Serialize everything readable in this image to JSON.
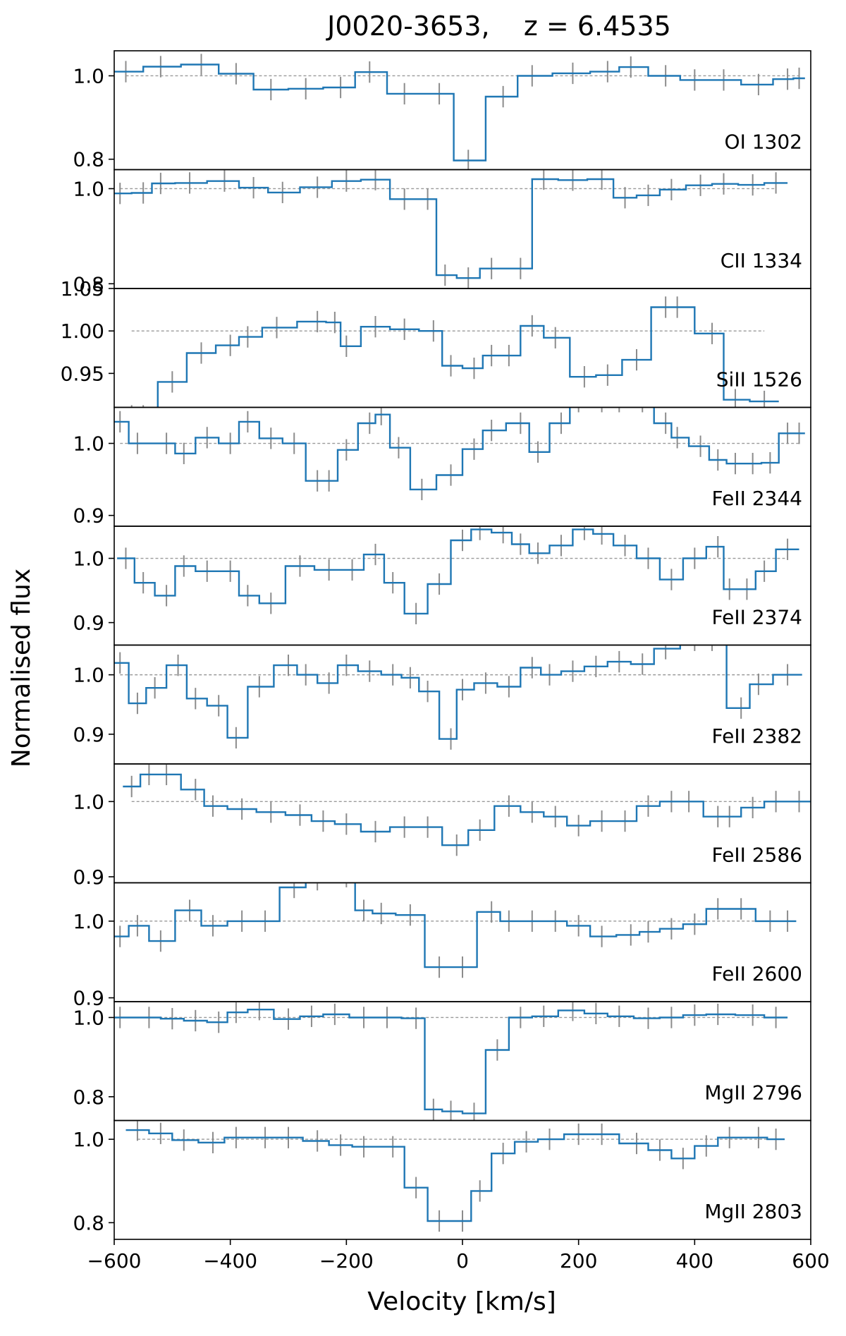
{
  "figure": {
    "title": "J0020-3653,    z = 6.4535",
    "xlabel": "Velocity [km/s]",
    "ylabel": "Normalised flux",
    "xlim": [
      -600,
      600
    ],
    "xticks": [
      -600,
      -400,
      -200,
      0,
      200,
      400,
      600
    ],
    "xtick_labels": [
      "−600",
      "−400",
      "−200",
      "0",
      "200",
      "400",
      "600"
    ]
  },
  "colors": {
    "flux": "#1f77b4",
    "error": "#8c8c8c",
    "continuum": "#9a9a9a"
  },
  "chart_data": [
    {
      "type": "line",
      "label": "OI 1302",
      "ylim": [
        0.775,
        1.06
      ],
      "yticks": [
        0.8,
        1.0
      ],
      "ytick_labels": [
        "0.8",
        "1.0"
      ],
      "x": [
        -580,
        -520,
        -450,
        -390,
        -330,
        -270,
        -210,
        -160,
        -100,
        -40,
        10,
        70,
        120,
        190,
        250,
        290,
        350,
        400,
        450,
        510,
        560,
        580
      ],
      "y": [
        1.01,
        1.022,
        1.027,
        1.005,
        0.967,
        0.969,
        0.972,
        1.009,
        0.957,
        0.957,
        0.797,
        0.95,
        1.0,
        1.006,
        1.01,
        1.021,
        1.0,
        0.99,
        0.99,
        0.979,
        0.992,
        0.994
      ]
    },
    {
      "type": "line",
      "label": "CII 1334",
      "ylim": [
        0.79,
        1.04
      ],
      "yticks": [
        0.8,
        1.0
      ],
      "ytick_labels": [
        "0.8",
        "1.0"
      ],
      "x": [
        -590,
        -550,
        -520,
        -470,
        -410,
        -360,
        -310,
        -250,
        -200,
        -150,
        -100,
        -60,
        -30,
        10,
        50,
        100,
        140,
        190,
        240,
        280,
        320,
        360,
        410,
        450,
        500,
        540
      ],
      "y": [
        0.99,
        0.991,
        1.011,
        1.012,
        1.016,
        1.002,
        0.992,
        1.003,
        1.016,
        1.019,
        0.978,
        0.978,
        0.818,
        0.812,
        0.832,
        0.832,
        1.02,
        1.018,
        1.02,
        0.981,
        0.986,
        0.998,
        1.007,
        1.01,
        1.008,
        1.012
      ]
    },
    {
      "type": "line",
      "label": "SiII 1526",
      "ylim": [
        0.91,
        1.05
      ],
      "yticks": [
        0.95,
        1.0,
        1.05
      ],
      "ytick_labels": [
        "0.95",
        "1.00",
        "1.05"
      ],
      "x": [
        -570,
        -550,
        -500,
        -450,
        -400,
        -370,
        -320,
        -250,
        -220,
        -200,
        -150,
        -100,
        -50,
        -20,
        20,
        50,
        80,
        120,
        160,
        210,
        250,
        300,
        350,
        370,
        430,
        470,
        520
      ],
      "y": [
        0.9,
        0.9,
        0.94,
        0.974,
        0.983,
        0.993,
        1.004,
        1.011,
        1.01,
        0.982,
        1.005,
        1.002,
        1.0,
        0.959,
        0.956,
        0.971,
        0.971,
        1.006,
        0.992,
        0.946,
        0.948,
        0.966,
        1.028,
        1.028,
        0.997,
        0.919,
        0.917
      ]
    },
    {
      "type": "line",
      "label": "FeII 2344",
      "ylim": [
        0.885,
        1.05
      ],
      "yticks": [
        0.9,
        1.0
      ],
      "ytick_labels": [
        "0.9",
        "1.0"
      ],
      "x": [
        -590,
        -560,
        -510,
        -480,
        -440,
        -400,
        -370,
        -330,
        -290,
        -250,
        -230,
        -200,
        -160,
        -140,
        -110,
        -70,
        -20,
        20,
        50,
        100,
        130,
        170,
        200,
        240,
        270,
        310,
        350,
        370,
        410,
        440,
        470,
        500,
        530,
        560,
        580
      ],
      "y": [
        1.03,
        1.0,
        1.0,
        0.986,
        1.008,
        1.0,
        1.03,
        1.007,
        1.0,
        0.948,
        0.948,
        0.991,
        1.028,
        1.04,
        0.994,
        0.936,
        0.956,
        0.992,
        1.018,
        1.028,
        0.988,
        1.028,
        1.058,
        1.058,
        1.058,
        1.058,
        1.028,
        1.008,
        0.996,
        0.977,
        0.972,
        0.972,
        0.973,
        1.014,
        1.014
      ]
    },
    {
      "type": "line",
      "label": "FeII 2374",
      "ylim": [
        0.865,
        1.05
      ],
      "yticks": [
        0.9,
        1.0
      ],
      "ytick_labels": [
        "0.9",
        "1.0"
      ],
      "x": [
        -580,
        -550,
        -510,
        -480,
        -440,
        -400,
        -370,
        -330,
        -280,
        -230,
        -190,
        -150,
        -120,
        -80,
        -40,
        0,
        30,
        70,
        100,
        130,
        170,
        210,
        240,
        280,
        320,
        360,
        400,
        440,
        460,
        490,
        520,
        560
      ],
      "y": [
        1.0,
        0.962,
        0.942,
        0.988,
        0.98,
        0.98,
        0.942,
        0.93,
        0.988,
        0.982,
        0.982,
        1.006,
        0.962,
        0.914,
        0.96,
        1.028,
        1.045,
        1.04,
        1.022,
        1.008,
        1.02,
        1.045,
        1.038,
        1.02,
        1.0,
        0.967,
        1.0,
        1.018,
        0.952,
        0.952,
        0.98,
        1.014
      ]
    },
    {
      "type": "line",
      "label": "FeII 2382",
      "ylim": [
        0.85,
        1.05
      ],
      "yticks": [
        0.9,
        1.0
      ],
      "ytick_labels": [
        "0.9",
        "1.0"
      ],
      "x": [
        -590,
        -560,
        -530,
        -490,
        -460,
        -420,
        -390,
        -350,
        -300,
        -270,
        -230,
        -200,
        -160,
        -120,
        -90,
        -60,
        -20,
        0,
        40,
        80,
        120,
        150,
        190,
        230,
        270,
        310,
        350,
        400,
        430,
        480,
        510,
        560
      ],
      "y": [
        1.02,
        0.952,
        0.978,
        1.016,
        0.96,
        0.948,
        0.894,
        0.98,
        1.016,
        1.0,
        0.986,
        1.016,
        1.006,
        1.0,
        0.995,
        0.972,
        0.892,
        0.975,
        0.986,
        0.98,
        1.012,
        1.0,
        1.006,
        1.014,
        1.022,
        1.018,
        1.044,
        1.058,
        1.058,
        0.944,
        0.984,
        1.0
      ]
    },
    {
      "type": "line",
      "label": "FeII 2586",
      "ylim": [
        0.892,
        1.05
      ],
      "yticks": [
        0.9,
        1.0
      ],
      "ytick_labels": [
        "0.9",
        "1.0"
      ],
      "x": [
        -570,
        -540,
        -510,
        -460,
        -430,
        -380,
        -330,
        -280,
        -240,
        -200,
        -150,
        -100,
        -60,
        -10,
        30,
        80,
        120,
        160,
        200,
        240,
        280,
        320,
        360,
        390,
        440,
        460,
        500,
        540,
        580
      ],
      "y": [
        1.02,
        1.036,
        1.036,
        1.016,
        0.994,
        0.99,
        0.986,
        0.982,
        0.974,
        0.97,
        0.96,
        0.966,
        0.966,
        0.942,
        0.962,
        0.994,
        0.986,
        0.98,
        0.968,
        0.974,
        0.974,
        0.994,
        1.0,
        1.0,
        0.98,
        0.98,
        0.992,
        1.0,
        1.0
      ]
    },
    {
      "type": "line",
      "label": "FeII 2600",
      "ylim": [
        0.895,
        1.05
      ],
      "yticks": [
        0.9,
        1.0
      ],
      "ytick_labels": [
        "0.9",
        "1.0"
      ],
      "x": [
        -590,
        -560,
        -520,
        -470,
        -430,
        -380,
        -340,
        -290,
        -250,
        -200,
        -170,
        -140,
        -90,
        -40,
        0,
        50,
        80,
        120,
        160,
        200,
        240,
        290,
        320,
        360,
        400,
        440,
        480,
        530,
        560
      ],
      "y": [
        0.98,
        0.994,
        0.974,
        1.014,
        0.994,
        1.0,
        1.0,
        1.044,
        1.054,
        1.058,
        1.014,
        1.01,
        1.008,
        0.94,
        0.94,
        1.012,
        1.0,
        1.0,
        1.0,
        0.994,
        0.98,
        0.982,
        0.986,
        0.99,
        0.996,
        1.016,
        1.016,
        1.0,
        1.0
      ]
    },
    {
      "type": "line",
      "label": "MgII 2796",
      "ylim": [
        0.74,
        1.04
      ],
      "yticks": [
        0.8,
        1.0
      ],
      "ytick_labels": [
        "0.8",
        "1.0"
      ],
      "x": [
        -590,
        -540,
        -500,
        -460,
        -420,
        -390,
        -350,
        -300,
        -260,
        -220,
        -170,
        -130,
        -80,
        -50,
        -20,
        20,
        60,
        100,
        140,
        190,
        230,
        270,
        320,
        360,
        400,
        440,
        500,
        540
      ],
      "y": [
        1.0,
        1.0,
        0.997,
        0.992,
        0.988,
        1.013,
        1.02,
        0.996,
        1.003,
        1.008,
        1.0,
        1.0,
        0.998,
        0.768,
        0.763,
        0.758,
        0.918,
        1.0,
        1.003,
        1.018,
        1.01,
        1.003,
        0.998,
        1.0,
        1.006,
        1.008,
        1.006,
        1.0
      ]
    },
    {
      "type": "line",
      "label": "MgII 2803",
      "ylim": [
        0.76,
        1.045
      ],
      "yticks": [
        0.8,
        1.0
      ],
      "ytick_labels": [
        "0.8",
        "1.0"
      ],
      "x": [
        -560,
        -520,
        -480,
        -430,
        -390,
        -340,
        -300,
        -250,
        -210,
        -170,
        -120,
        -80,
        -40,
        0,
        30,
        70,
        110,
        150,
        200,
        240,
        300,
        340,
        380,
        420,
        460,
        510,
        540
      ],
      "y": [
        1.022,
        1.014,
        0.998,
        0.992,
        1.004,
        1.004,
        1.004,
        0.996,
        0.986,
        0.982,
        0.982,
        0.884,
        0.804,
        0.804,
        0.876,
        0.966,
        0.994,
        1.0,
        1.012,
        1.012,
        0.99,
        0.974,
        0.954,
        0.984,
        1.004,
        1.004,
        1.0
      ]
    }
  ]
}
